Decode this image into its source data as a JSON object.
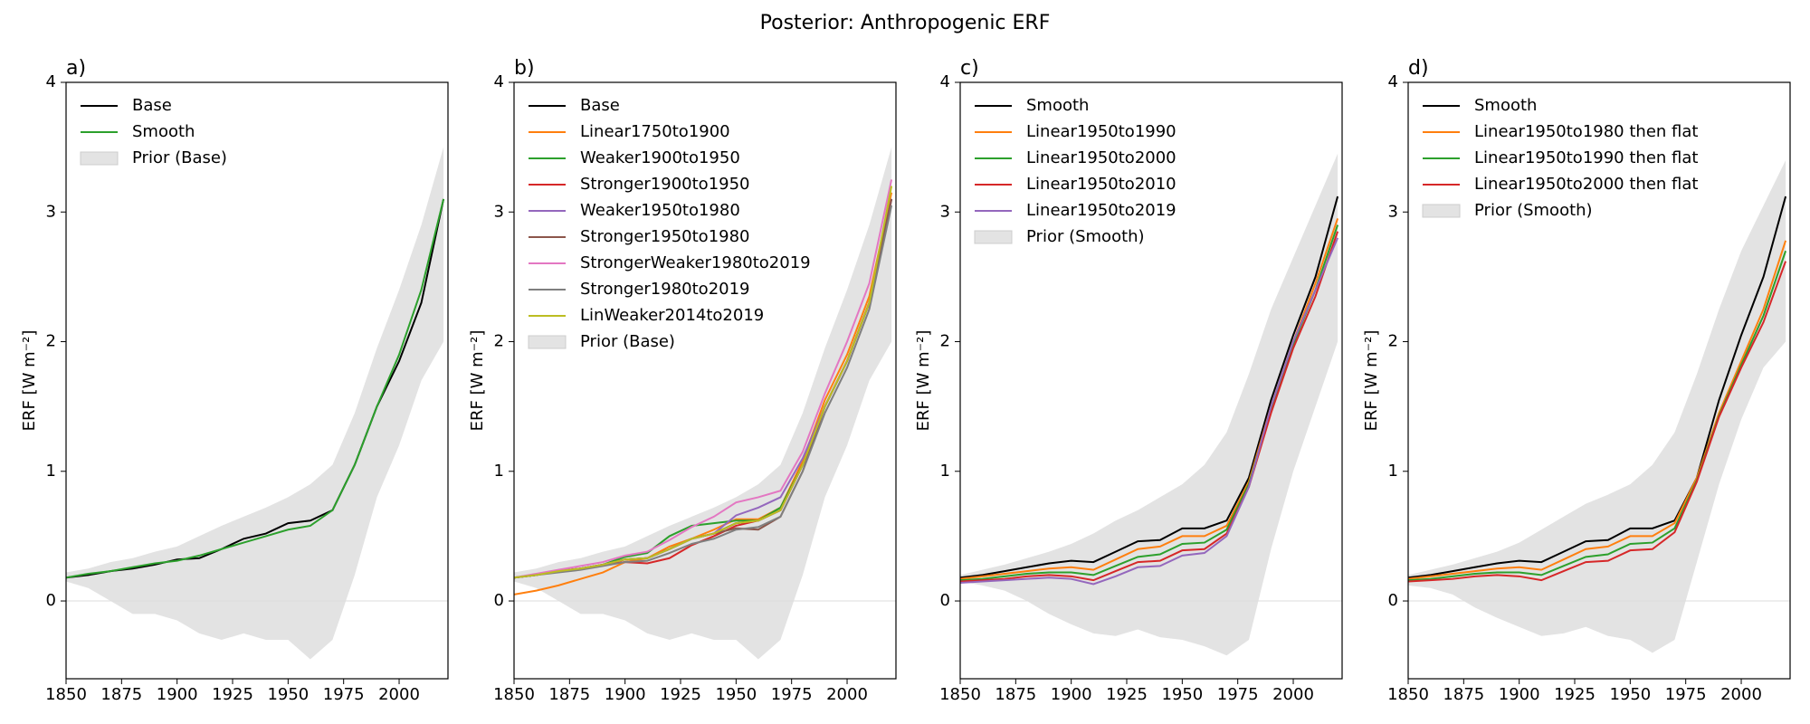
{
  "title": "Posterior: Anthropogenic ERF",
  "chart_data": [
    {
      "type": "line",
      "panel_label": "a)",
      "ylabel": "ERF [W m⁻²]",
      "x": [
        1850,
        1860,
        1870,
        1880,
        1890,
        1900,
        1910,
        1920,
        1930,
        1940,
        1950,
        1960,
        1970,
        1980,
        1990,
        2000,
        2010,
        2020
      ],
      "xlim": [
        1850,
        2022
      ],
      "ylim": [
        -0.6,
        4
      ],
      "xticks": [
        1850,
        1875,
        1900,
        1925,
        1950,
        1975,
        2000
      ],
      "yticks": [
        0,
        1,
        2,
        3,
        4
      ],
      "hline": 0,
      "legend": "upper left",
      "series": [
        {
          "name": "Base",
          "color": "#000000",
          "values": [
            0.18,
            0.2,
            0.23,
            0.25,
            0.28,
            0.32,
            0.33,
            0.4,
            0.48,
            0.52,
            0.6,
            0.62,
            0.7,
            1.05,
            1.5,
            1.85,
            2.3,
            3.1
          ]
        },
        {
          "name": "Smooth",
          "color": "#2ca02c",
          "values": [
            0.18,
            0.21,
            0.23,
            0.26,
            0.29,
            0.31,
            0.35,
            0.4,
            0.45,
            0.5,
            0.55,
            0.58,
            0.7,
            1.05,
            1.5,
            1.9,
            2.4,
            3.1
          ]
        }
      ],
      "band": {
        "name": "Prior (Base)",
        "color": "#e3e3e3",
        "lower": [
          0.15,
          0.1,
          0.0,
          -0.1,
          -0.1,
          -0.15,
          -0.25,
          -0.3,
          -0.25,
          -0.3,
          -0.3,
          -0.45,
          -0.3,
          0.2,
          0.8,
          1.2,
          1.7,
          2.0
        ],
        "upper": [
          0.22,
          0.25,
          0.3,
          0.33,
          0.38,
          0.42,
          0.5,
          0.58,
          0.65,
          0.72,
          0.8,
          0.9,
          1.05,
          1.45,
          1.95,
          2.4,
          2.9,
          3.5
        ]
      }
    },
    {
      "type": "line",
      "panel_label": "b)",
      "ylabel": "ERF [W m⁻²]",
      "x": [
        1850,
        1860,
        1870,
        1880,
        1890,
        1900,
        1910,
        1920,
        1930,
        1940,
        1950,
        1960,
        1970,
        1980,
        1990,
        2000,
        2010,
        2020
      ],
      "xlim": [
        1850,
        2022
      ],
      "ylim": [
        -0.6,
        4
      ],
      "xticks": [
        1850,
        1875,
        1900,
        1925,
        1950,
        1975,
        2000
      ],
      "yticks": [
        0,
        1,
        2,
        3,
        4
      ],
      "hline": 0,
      "legend": "upper left",
      "series": [
        {
          "name": "Base",
          "color": "#000000",
          "values": [
            0.18,
            0.2,
            0.23,
            0.25,
            0.28,
            0.32,
            0.33,
            0.4,
            0.48,
            0.52,
            0.6,
            0.62,
            0.7,
            1.05,
            1.5,
            1.85,
            2.3,
            3.1
          ]
        },
        {
          "name": "Linear1750to1900",
          "color": "#ff7f0e",
          "values": [
            0.05,
            0.08,
            0.12,
            0.17,
            0.22,
            0.3,
            0.33,
            0.42,
            0.48,
            0.55,
            0.63,
            0.63,
            0.72,
            1.08,
            1.55,
            1.9,
            2.35,
            3.15
          ]
        },
        {
          "name": "Weaker1900to1950",
          "color": "#2ca02c",
          "values": [
            0.18,
            0.2,
            0.23,
            0.25,
            0.28,
            0.34,
            0.37,
            0.5,
            0.58,
            0.6,
            0.62,
            0.62,
            0.72,
            1.05,
            1.5,
            1.85,
            2.3,
            3.1
          ]
        },
        {
          "name": "Stronger1900to1950",
          "color": "#d62728",
          "values": [
            0.18,
            0.2,
            0.23,
            0.25,
            0.28,
            0.3,
            0.29,
            0.33,
            0.43,
            0.5,
            0.58,
            0.62,
            0.7,
            1.05,
            1.5,
            1.85,
            2.3,
            3.1
          ]
        },
        {
          "name": "Weaker1950to1980",
          "color": "#9467bd",
          "values": [
            0.18,
            0.2,
            0.23,
            0.25,
            0.28,
            0.32,
            0.33,
            0.4,
            0.48,
            0.52,
            0.66,
            0.72,
            0.8,
            1.1,
            1.5,
            1.85,
            2.3,
            3.1
          ]
        },
        {
          "name": "Stronger1950to1980",
          "color": "#8c564b",
          "values": [
            0.18,
            0.2,
            0.23,
            0.25,
            0.28,
            0.32,
            0.33,
            0.4,
            0.48,
            0.52,
            0.56,
            0.55,
            0.65,
            1.0,
            1.5,
            1.85,
            2.3,
            3.1
          ]
        },
        {
          "name": "StrongerWeaker1980to2019",
          "color": "#e377c2",
          "values": [
            0.18,
            0.21,
            0.24,
            0.27,
            0.3,
            0.35,
            0.38,
            0.47,
            0.57,
            0.65,
            0.76,
            0.8,
            0.85,
            1.15,
            1.6,
            2.0,
            2.45,
            3.25
          ]
        },
        {
          "name": "Stronger1980to2019",
          "color": "#7f7f7f",
          "values": [
            0.18,
            0.2,
            0.22,
            0.24,
            0.27,
            0.3,
            0.31,
            0.37,
            0.44,
            0.48,
            0.55,
            0.57,
            0.65,
            1.0,
            1.45,
            1.8,
            2.25,
            3.05
          ]
        },
        {
          "name": "LinWeaker2014to2019",
          "color": "#bcbd22",
          "values": [
            0.18,
            0.2,
            0.23,
            0.25,
            0.28,
            0.32,
            0.33,
            0.4,
            0.48,
            0.52,
            0.6,
            0.62,
            0.7,
            1.05,
            1.5,
            1.85,
            2.3,
            3.2
          ]
        }
      ],
      "band": {
        "name": "Prior (Base)",
        "color": "#e3e3e3",
        "lower": [
          0.15,
          0.1,
          0.0,
          -0.1,
          -0.1,
          -0.15,
          -0.25,
          -0.3,
          -0.25,
          -0.3,
          -0.3,
          -0.45,
          -0.3,
          0.2,
          0.8,
          1.2,
          1.7,
          2.0
        ],
        "upper": [
          0.22,
          0.25,
          0.3,
          0.33,
          0.38,
          0.42,
          0.5,
          0.58,
          0.65,
          0.72,
          0.8,
          0.9,
          1.05,
          1.45,
          1.95,
          2.4,
          2.9,
          3.5
        ]
      }
    },
    {
      "type": "line",
      "panel_label": "c)",
      "ylabel": "ERF [W m⁻²]",
      "x": [
        1850,
        1860,
        1870,
        1880,
        1890,
        1900,
        1910,
        1920,
        1930,
        1940,
        1950,
        1960,
        1970,
        1980,
        1990,
        2000,
        2010,
        2020
      ],
      "xlim": [
        1850,
        2022
      ],
      "ylim": [
        -0.6,
        4
      ],
      "xticks": [
        1850,
        1875,
        1900,
        1925,
        1950,
        1975,
        2000
      ],
      "yticks": [
        0,
        1,
        2,
        3,
        4
      ],
      "hline": 0,
      "legend": "upper left",
      "series": [
        {
          "name": "Smooth",
          "color": "#000000",
          "values": [
            0.18,
            0.2,
            0.23,
            0.26,
            0.29,
            0.31,
            0.3,
            0.38,
            0.46,
            0.47,
            0.56,
            0.56,
            0.62,
            0.95,
            1.55,
            2.05,
            2.5,
            3.12
          ]
        },
        {
          "name": "Linear1950to1990",
          "color": "#ff7f0e",
          "values": [
            0.17,
            0.19,
            0.21,
            0.23,
            0.25,
            0.26,
            0.24,
            0.32,
            0.4,
            0.42,
            0.5,
            0.5,
            0.58,
            0.92,
            1.5,
            2.0,
            2.45,
            2.95
          ]
        },
        {
          "name": "Linear1950to2000",
          "color": "#2ca02c",
          "values": [
            0.16,
            0.17,
            0.19,
            0.21,
            0.22,
            0.22,
            0.2,
            0.27,
            0.34,
            0.36,
            0.44,
            0.45,
            0.55,
            0.9,
            1.48,
            1.98,
            2.4,
            2.9
          ]
        },
        {
          "name": "Linear1950to2010",
          "color": "#d62728",
          "values": [
            0.15,
            0.16,
            0.17,
            0.19,
            0.2,
            0.19,
            0.16,
            0.23,
            0.3,
            0.31,
            0.39,
            0.4,
            0.52,
            0.88,
            1.45,
            1.95,
            2.35,
            2.85
          ]
        },
        {
          "name": "Linear1950to2019",
          "color": "#9467bd",
          "values": [
            0.14,
            0.15,
            0.16,
            0.17,
            0.18,
            0.17,
            0.13,
            0.19,
            0.26,
            0.27,
            0.35,
            0.37,
            0.5,
            0.88,
            1.5,
            2.0,
            2.4,
            2.8
          ]
        }
      ],
      "band": {
        "name": "Prior (Smooth)",
        "color": "#e3e3e3",
        "lower": [
          0.15,
          0.12,
          0.08,
          0.0,
          -0.1,
          -0.18,
          -0.25,
          -0.27,
          -0.22,
          -0.28,
          -0.3,
          -0.35,
          -0.42,
          -0.3,
          0.4,
          1.0,
          1.5,
          2.0
        ],
        "upper": [
          0.2,
          0.24,
          0.28,
          0.33,
          0.38,
          0.44,
          0.52,
          0.62,
          0.7,
          0.8,
          0.9,
          1.05,
          1.3,
          1.75,
          2.25,
          2.65,
          3.05,
          3.45
        ]
      }
    },
    {
      "type": "line",
      "panel_label": "d)",
      "ylabel": "ERF [W m⁻²]",
      "x": [
        1850,
        1860,
        1870,
        1880,
        1890,
        1900,
        1910,
        1920,
        1930,
        1940,
        1950,
        1960,
        1970,
        1980,
        1990,
        2000,
        2010,
        2020
      ],
      "xlim": [
        1850,
        2022
      ],
      "ylim": [
        -0.6,
        4
      ],
      "xticks": [
        1850,
        1875,
        1900,
        1925,
        1950,
        1975,
        2000
      ],
      "yticks": [
        0,
        1,
        2,
        3,
        4
      ],
      "hline": 0,
      "legend": "upper left",
      "series": [
        {
          "name": "Smooth",
          "color": "#000000",
          "values": [
            0.18,
            0.2,
            0.23,
            0.26,
            0.29,
            0.31,
            0.3,
            0.38,
            0.46,
            0.47,
            0.56,
            0.56,
            0.62,
            0.95,
            1.55,
            2.05,
            2.5,
            3.12
          ]
        },
        {
          "name": "Linear1950to1980 then flat",
          "color": "#ff7f0e",
          "values": [
            0.17,
            0.19,
            0.21,
            0.23,
            0.25,
            0.26,
            0.24,
            0.32,
            0.4,
            0.42,
            0.5,
            0.5,
            0.6,
            0.95,
            1.45,
            1.85,
            2.25,
            2.78
          ]
        },
        {
          "name": "Linear1950to1990 then flat",
          "color": "#2ca02c",
          "values": [
            0.16,
            0.17,
            0.19,
            0.21,
            0.22,
            0.22,
            0.2,
            0.27,
            0.34,
            0.36,
            0.44,
            0.45,
            0.56,
            0.93,
            1.43,
            1.82,
            2.2,
            2.7
          ]
        },
        {
          "name": "Linear1950to2000 then flat",
          "color": "#d62728",
          "values": [
            0.15,
            0.16,
            0.17,
            0.19,
            0.2,
            0.19,
            0.16,
            0.23,
            0.3,
            0.31,
            0.39,
            0.4,
            0.53,
            0.92,
            1.42,
            1.8,
            2.15,
            2.62
          ]
        }
      ],
      "band": {
        "name": "Prior (Smooth)",
        "color": "#e3e3e3",
        "lower": [
          0.12,
          0.1,
          0.05,
          -0.05,
          -0.13,
          -0.2,
          -0.27,
          -0.25,
          -0.2,
          -0.27,
          -0.3,
          -0.4,
          -0.3,
          0.3,
          0.9,
          1.4,
          1.8,
          2.0
        ],
        "upper": [
          0.2,
          0.24,
          0.28,
          0.33,
          0.38,
          0.45,
          0.55,
          0.65,
          0.75,
          0.82,
          0.9,
          1.05,
          1.3,
          1.75,
          2.25,
          2.7,
          3.05,
          3.4
        ]
      }
    }
  ]
}
